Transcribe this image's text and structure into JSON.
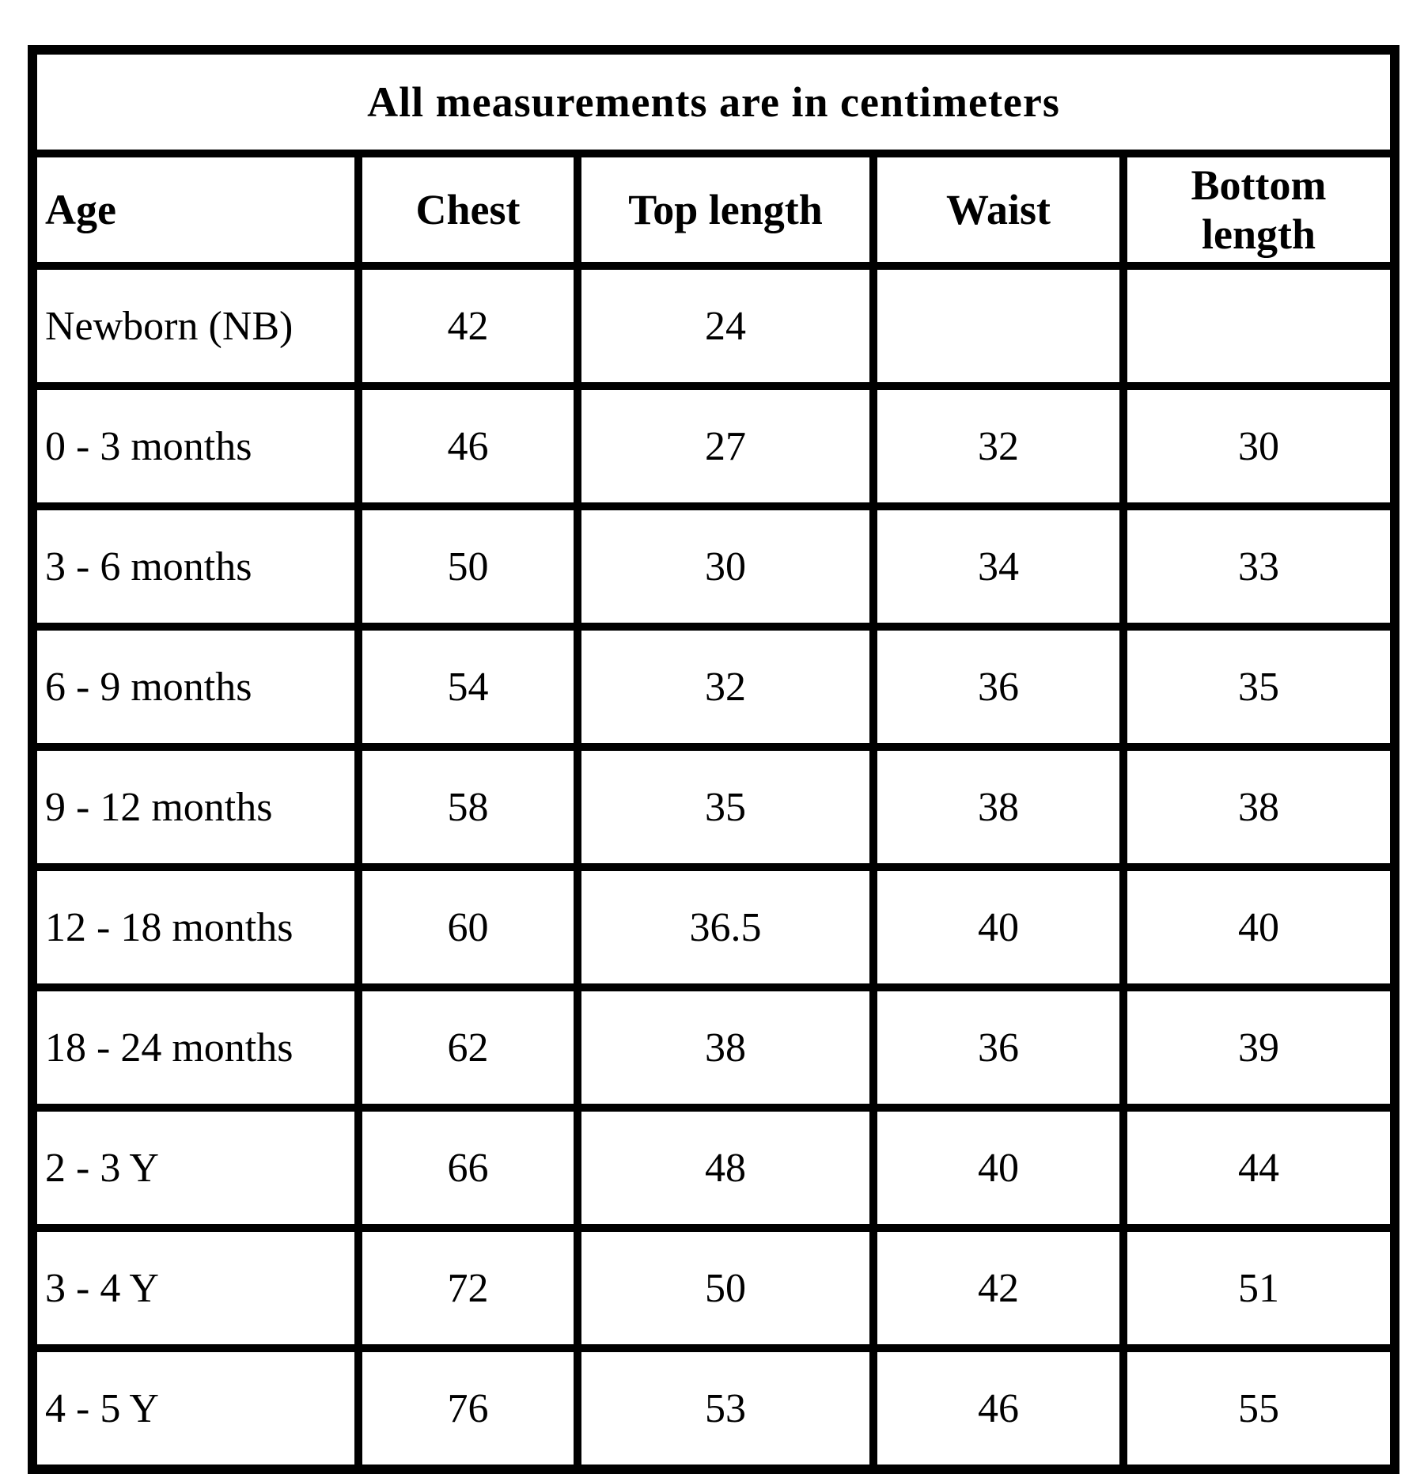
{
  "page": {
    "background_color": "#ffffff",
    "border_color": "#000000",
    "text_color": "#000000"
  },
  "table": {
    "title": "All measurements are in centimeters",
    "columns": [
      "Age",
      "Chest",
      "Top length",
      "Waist",
      "Bottom length"
    ],
    "rows": [
      [
        "Newborn (NB)",
        "42",
        "24",
        "",
        ""
      ],
      [
        "0 - 3 months",
        "46",
        "27",
        "32",
        "30"
      ],
      [
        "3 - 6 months",
        "50",
        "30",
        "34",
        "33"
      ],
      [
        "6 - 9 months",
        "54",
        "32",
        "36",
        "35"
      ],
      [
        "9 - 12 months",
        "58",
        "35",
        "38",
        "38"
      ],
      [
        "12 - 18 months",
        "60",
        "36.5",
        "40",
        "40"
      ],
      [
        "18 - 24 months",
        "62",
        "38",
        "36",
        "39"
      ],
      [
        "2 - 3 Y",
        "66",
        "48",
        "40",
        "44"
      ],
      [
        "3 - 4 Y",
        "72",
        "50",
        "42",
        "51"
      ],
      [
        "4 - 5 Y",
        "76",
        "53",
        "46",
        "55"
      ]
    ]
  }
}
